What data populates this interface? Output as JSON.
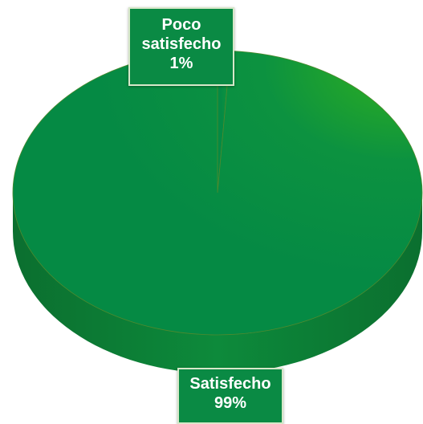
{
  "chart_data": {
    "type": "pie",
    "style": "3d",
    "categories": [
      "Poco satisfecho",
      "Satisfecho"
    ],
    "values": [
      1,
      99
    ],
    "labels": [
      {
        "category_lines": [
          "Poco",
          "satisfecho"
        ],
        "percent": "1%"
      },
      {
        "category_lines": [
          "Satisfecho"
        ],
        "percent": "99%"
      }
    ],
    "colors": {
      "slice_main": "#058a44",
      "slice_highlight": "#2fb01f",
      "side": "#0b7a34",
      "label_bg": "#0a8a44",
      "label_border": "#d7e8c9"
    },
    "title": "",
    "legend": "none"
  }
}
